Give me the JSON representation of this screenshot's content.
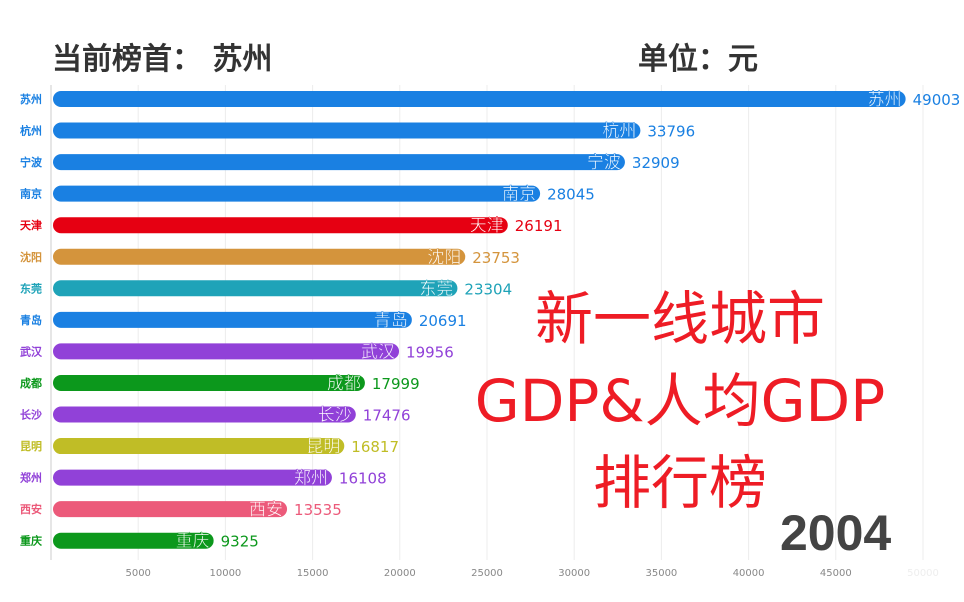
{
  "header": {
    "leader_label": "当前榜首：",
    "leader": "苏州",
    "unit_label": "单位：元"
  },
  "overlay": {
    "line1": "新一线城市",
    "line2": "GDP&人均GDP",
    "line3": "排行榜"
  },
  "year": "2004",
  "chart_data": {
    "type": "bar",
    "orientation": "horizontal",
    "xlim": [
      0,
      50000
    ],
    "xticks": [
      "5000",
      "10000",
      "15000",
      "20000",
      "25000",
      "30000",
      "35000",
      "40000",
      "45000",
      "50000"
    ],
    "grid": true,
    "categories": [
      "苏州",
      "杭州",
      "宁波",
      "南京",
      "天津",
      "沈阳",
      "东莞",
      "青岛",
      "武汉",
      "成都",
      "长沙",
      "昆明",
      "郑州",
      "西安",
      "重庆"
    ],
    "values": [
      49003,
      33796,
      32909,
      28045,
      26191,
      23753,
      23304,
      20691,
      19956,
      17999,
      17476,
      16817,
      16108,
      13535,
      9325
    ],
    "colors": [
      "#1a80e2",
      "#1a80e2",
      "#1a80e2",
      "#1a80e2",
      "#e60012",
      "#d4943c",
      "#1fa3b8",
      "#1a80e2",
      "#9141d8",
      "#0c981c",
      "#9141d8",
      "#c0bd26",
      "#9141d8",
      "#ec5a7a",
      "#0c981c"
    ]
  }
}
